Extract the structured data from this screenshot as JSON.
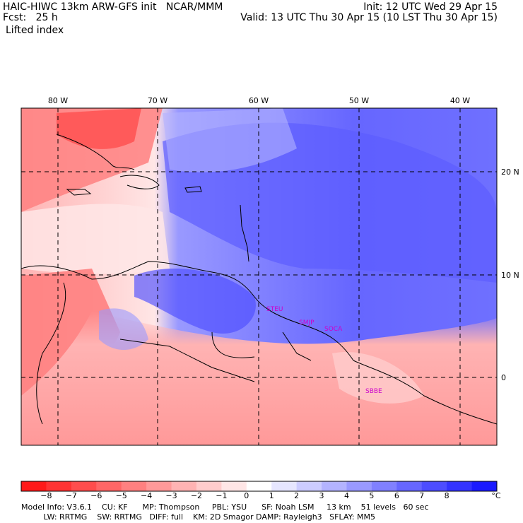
{
  "header": {
    "left1": "HAIC-HIWC 13km ARW-GFS init   NCAR/MMM",
    "left2": "Fcst:   25 h",
    "left3": "Lifted index",
    "right1": "Init: 12 UTC Wed 29 Apr 15",
    "right2": "Valid: 13 UTC Thu 30 Apr 15 (10 LST Thu 30 Apr 15)"
  },
  "axes": {
    "lon_labels": [
      "80 W",
      "70 W",
      "60 W",
      "50 W",
      "40 W"
    ],
    "lat_labels": [
      "20 N",
      "10 N",
      "0"
    ]
  },
  "stations": [
    "STEU",
    "SMJP",
    "SOCA",
    "SBBE"
  ],
  "colorbar": {
    "labels": [
      "−8",
      "−7",
      "−6",
      "−5",
      "−4",
      "−3",
      "−2",
      "−1",
      "0",
      "1",
      "2",
      "3",
      "4",
      "5",
      "6",
      "7",
      "8"
    ],
    "unit": "°C",
    "colors": [
      "#ff1a1a",
      "#ff3333",
      "#ff4d4d",
      "#ff6666",
      "#ff8080",
      "#ff9999",
      "#ffb3b3",
      "#ffcccc",
      "#ffe6e6",
      "#ffffff",
      "#e6e6ff",
      "#ccccff",
      "#b3b3ff",
      "#9999ff",
      "#8080ff",
      "#6666ff",
      "#4d4dff",
      "#3333ff",
      "#1a1aff"
    ]
  },
  "footer": {
    "line1": "Model Info: V3.6.1    CU: KF      MP: Thompson     PBL: YSU      SF: Noah LSM     13 km    51 levels   60 sec",
    "line2": "         LW: RRTMG    SW: RRTMG   DIFF: full    KM: 2D Smagor DAMP: Rayleigh3   SFLAY: MM5"
  }
}
